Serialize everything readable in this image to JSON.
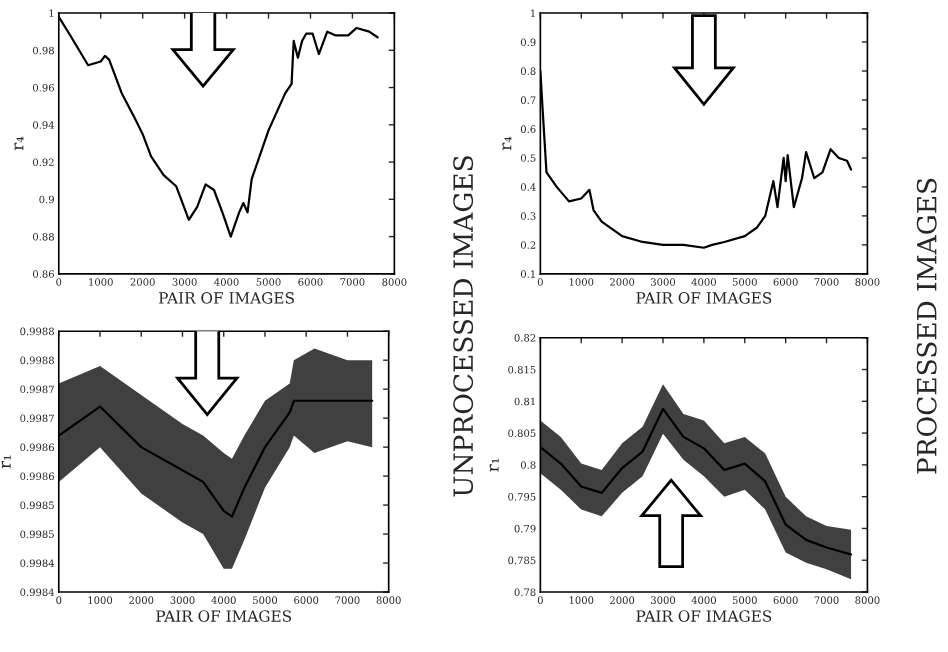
{
  "chart_data": [
    {
      "type": "line",
      "xlabel": "PAIR OF IMAGES",
      "ylabel": "r₄",
      "annotations": [
        "UNPROCESSED IMAGES"
      ],
      "x": [
        0,
        300,
        700,
        1000,
        1100,
        1200,
        1500,
        1800,
        2000,
        2200,
        2500,
        2800,
        3000,
        3100,
        3300,
        3500,
        3700,
        3900,
        4100,
        4300,
        4400,
        4500,
        4600,
        5000,
        5400,
        5550,
        5600,
        5700,
        5800,
        5900,
        6050,
        6200,
        6400,
        6600,
        6900,
        7100,
        7400,
        7600
      ],
      "series": [
        {
          "color": "#000000",
          "values": [
            0.998,
            0.987,
            0.972,
            0.974,
            0.977,
            0.975,
            0.957,
            0.944,
            0.935,
            0.923,
            0.913,
            0.907,
            0.895,
            0.889,
            0.896,
            0.908,
            0.905,
            0.893,
            0.88,
            0.893,
            0.898,
            0.893,
            0.911,
            0.937,
            0.957,
            0.962,
            0.985,
            0.976,
            0.985,
            0.989,
            0.989,
            0.978,
            0.99,
            0.988,
            0.988,
            0.992,
            0.99,
            0.987
          ]
        }
      ],
      "xlim": [
        0,
        8000
      ],
      "xticks": [
        0,
        1000,
        2000,
        3000,
        4000,
        5000,
        6000,
        7000,
        8000
      ],
      "ylim": [
        0.86,
        1
      ],
      "yticks": [
        0.86,
        0.88,
        {
          "value": 0.9,
          "label": "0.9"
        },
        0.92,
        0.94,
        0.96,
        0.98,
        {
          "value": 1,
          "label": "1"
        }
      ]
    },
    {
      "type": "line",
      "xlabel": "PAIR OF IMAGES",
      "ylabel": "r₄",
      "annotations": [
        "PROCESSED IMAGES"
      ],
      "x": [
        0,
        50,
        150,
        400,
        700,
        1000,
        1200,
        1300,
        1500,
        2000,
        2500,
        3000,
        3500,
        4000,
        4200,
        4500,
        5000,
        5300,
        5500,
        5700,
        5800,
        5950,
        6000,
        6050,
        6200,
        6400,
        6500,
        6700,
        6900,
        7100,
        7300,
        7500,
        7600
      ],
      "series": [
        {
          "color": "#000000",
          "values": [
            0.8,
            0.68,
            0.45,
            0.4,
            0.35,
            0.36,
            0.39,
            0.32,
            0.28,
            0.23,
            0.21,
            0.2,
            0.2,
            0.19,
            0.2,
            0.21,
            0.23,
            0.26,
            0.3,
            0.42,
            0.33,
            0.5,
            0.42,
            0.51,
            0.33,
            0.43,
            0.52,
            0.43,
            0.45,
            0.53,
            0.5,
            0.49,
            0.46
          ]
        }
      ],
      "xlim": [
        0,
        8000
      ],
      "xticks": [
        0,
        1000,
        2000,
        3000,
        4000,
        5000,
        6000,
        7000,
        8000
      ],
      "ylim": [
        0.1,
        1
      ],
      "yticks": [
        0.1,
        0.2,
        0.3,
        0.4,
        0.5,
        0.6,
        0.7,
        0.8,
        0.9,
        {
          "value": 1,
          "label": "1"
        }
      ]
    },
    {
      "type": "line",
      "xlabel": "PAIR OF IMAGES",
      "ylabel": "r₁",
      "x": [
        0,
        1000,
        2000,
        3000,
        3500,
        4000,
        4200,
        4500,
        5000,
        5600,
        5700,
        6200,
        7000,
        7600
      ],
      "series": [
        {
          "color": "#000000",
          "values": [
            0.99862,
            0.99867,
            0.9986,
            0.99856,
            0.99854,
            0.99849,
            0.99848,
            0.99853,
            0.9986,
            0.99866,
            0.99868,
            0.99868,
            0.99868,
            0.99868
          ],
          "lower": [
            0.99854,
            0.9986,
            0.99852,
            0.99847,
            0.99845,
            0.99839,
            0.99839,
            0.99844,
            0.99853,
            0.9986,
            0.99862,
            0.99859,
            0.99861,
            0.9986
          ],
          "upper": [
            0.99871,
            0.99874,
            0.99869,
            0.99864,
            0.99862,
            0.99859,
            0.99858,
            0.99862,
            0.99868,
            0.99871,
            0.99875,
            0.99877,
            0.99875,
            0.99875
          ]
        }
      ],
      "xlim": [
        0,
        8000
      ],
      "xticks": [
        0,
        1000,
        2000,
        3000,
        4000,
        5000,
        6000,
        7000,
        8000
      ],
      "ylim": [
        0.99835,
        0.9988
      ],
      "yticks": [
        {
          "value": 0.99835,
          "label": "0.9984"
        },
        {
          "value": 0.9984,
          "label": "0.9984"
        },
        {
          "value": 0.99845,
          "label": "0.9985"
        },
        {
          "value": 0.9985,
          "label": "0.9985"
        },
        {
          "value": 0.99855,
          "label": "0.9986"
        },
        {
          "value": 0.9986,
          "label": "0.9986"
        },
        {
          "value": 0.99865,
          "label": "0.9987"
        },
        {
          "value": 0.9987,
          "label": "0.9987"
        },
        {
          "value": 0.99875,
          "label": "0.9988"
        },
        {
          "value": 0.9988,
          "label": "0.9988"
        }
      ]
    },
    {
      "type": "line",
      "xlabel": "PAIR OF IMAGES",
      "ylabel": "r₁",
      "x": [
        0,
        500,
        1000,
        1500,
        2000,
        2500,
        3000,
        3500,
        4000,
        4500,
        5000,
        5500,
        6000,
        6500,
        7000,
        7600
      ],
      "series": [
        {
          "color": "#000000",
          "values": [
            0.8028,
            0.8002,
            0.7966,
            0.7956,
            0.7995,
            0.8021,
            0.8088,
            0.8044,
            0.8026,
            0.7992,
            0.8002,
            0.7974,
            0.7906,
            0.7882,
            0.787,
            0.7859
          ],
          "lower": [
            0.7987,
            0.7961,
            0.793,
            0.7919,
            0.7956,
            0.7982,
            0.8049,
            0.8008,
            0.7982,
            0.795,
            0.7961,
            0.793,
            0.7862,
            0.7846,
            0.7836,
            0.782
          ],
          "upper": [
            0.807,
            0.8044,
            0.8002,
            0.7992,
            0.8034,
            0.806,
            0.8127,
            0.808,
            0.807,
            0.8034,
            0.8044,
            0.8018,
            0.795,
            0.7919,
            0.7904,
            0.7898
          ]
        }
      ],
      "xlim": [
        0,
        8000
      ],
      "xticks": [
        0,
        1000,
        2000,
        3000,
        4000,
        5000,
        6000,
        7000,
        8000
      ],
      "ylim": [
        0.78,
        0.82
      ],
      "yticks": [
        0.78,
        0.785,
        0.79,
        0.795,
        {
          "value": 0.8,
          "label": "0.8"
        },
        0.805,
        {
          "value": 0.81,
          "label": "0.81"
        },
        0.815,
        {
          "value": 0.82,
          "label": "0.82"
        }
      ]
    }
  ]
}
